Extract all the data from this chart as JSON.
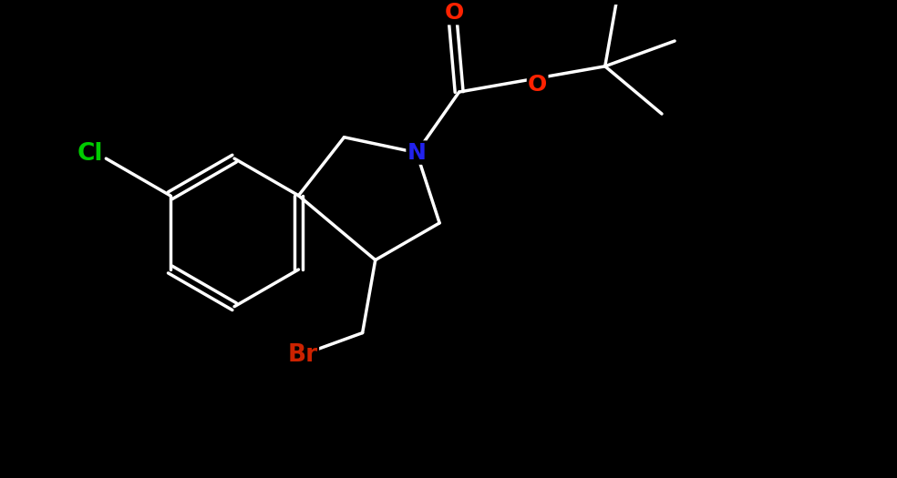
{
  "background_color": "#000000",
  "bond_color": "#ffffff",
  "Cl_color": "#00cc00",
  "Br_color": "#cc2200",
  "N_color": "#2222ee",
  "O_color": "#ff2200",
  "bond_lw": 2.5,
  "font_size": 18,
  "figsize": [
    9.84,
    5.25
  ],
  "dpi": 100,
  "xlim": [
    0,
    9.84
  ],
  "ylim": [
    0,
    5.25
  ]
}
